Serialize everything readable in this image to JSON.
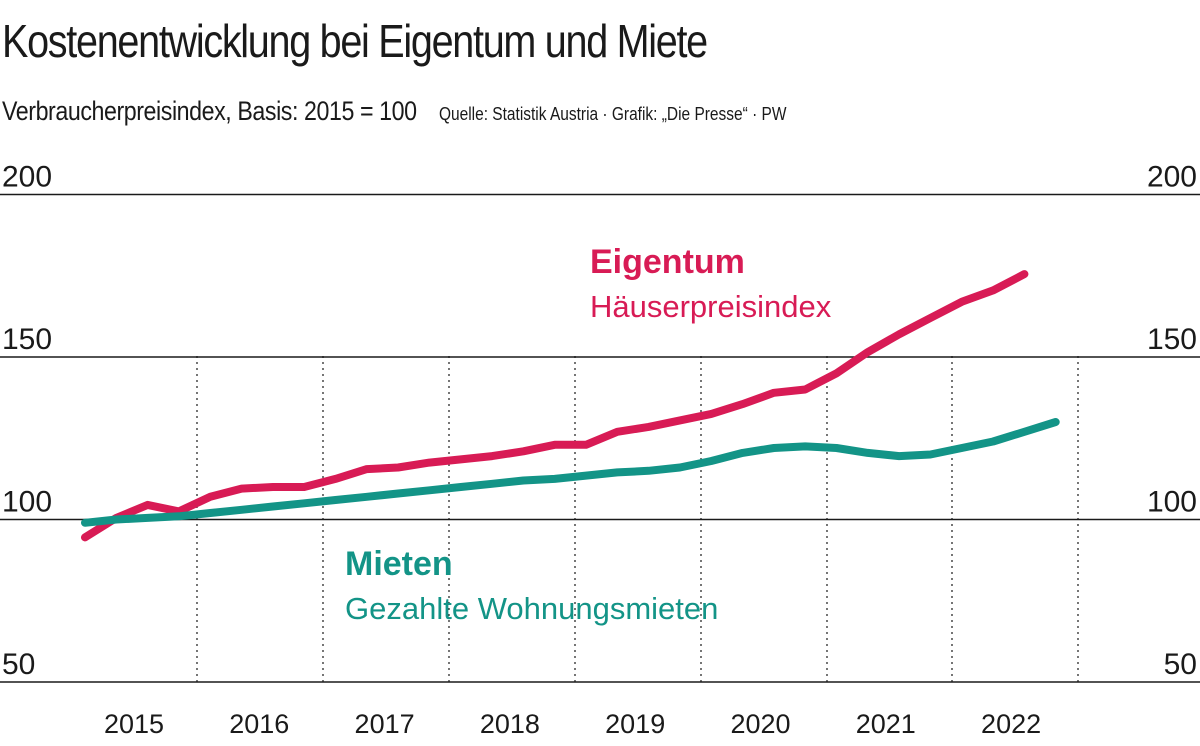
{
  "header": {
    "title": "Kostenentwicklung bei Eigentum und Miete",
    "subtitle": "Verbraucherpreisindex, Basis: 2015 = 100",
    "source": "Quelle: Statistik Austria · Grafik: „Die Presse“ · PW"
  },
  "chart_data": {
    "type": "line",
    "ylim": [
      50,
      200
    ],
    "yticks": [
      "50",
      "100",
      "150",
      "200"
    ],
    "years": [
      "2015",
      "2016",
      "2017",
      "2018",
      "2019",
      "2020",
      "2021",
      "2022"
    ],
    "grid": "horizontal solid lines at y ticks, dotted vertical separators between years",
    "series": [
      {
        "name": "Eigentum",
        "sublabel": "Häuserpreisindex",
        "color": "#d81b55",
        "x": [
          2015.0,
          2015.25,
          2015.5,
          2015.75,
          2016.0,
          2016.25,
          2016.5,
          2016.75,
          2017.0,
          2017.25,
          2017.5,
          2017.75,
          2018.0,
          2018.25,
          2018.5,
          2018.75,
          2019.0,
          2019.25,
          2019.5,
          2019.75,
          2020.0,
          2020.25,
          2020.5,
          2020.75,
          2021.0,
          2021.25,
          2021.5,
          2021.75,
          2022.0,
          2022.25,
          2022.5
        ],
        "values": [
          94.5,
          100.5,
          104.5,
          102.5,
          107,
          109.5,
          110,
          110,
          112.5,
          115.5,
          116,
          117.5,
          118.5,
          119.5,
          121,
          123,
          123,
          127,
          128.5,
          130.5,
          132.5,
          135.5,
          139,
          140,
          145,
          151.5,
          157,
          162,
          167,
          170.5,
          175.5
        ]
      },
      {
        "name": "Mieten",
        "sublabel": "Gezahlte Wohnungsmieten",
        "color": "#139487",
        "x": [
          2015.0,
          2015.25,
          2015.5,
          2015.75,
          2016.0,
          2016.25,
          2016.5,
          2016.75,
          2017.0,
          2017.25,
          2017.5,
          2017.75,
          2018.0,
          2018.25,
          2018.5,
          2018.75,
          2019.0,
          2019.25,
          2019.5,
          2019.75,
          2020.0,
          2020.25,
          2020.5,
          2020.75,
          2021.0,
          2021.25,
          2021.5,
          2021.75,
          2022.0,
          2022.25,
          2022.5,
          2022.75
        ],
        "values": [
          99,
          100,
          100.5,
          101,
          102,
          103,
          104,
          105,
          106,
          107,
          108,
          109,
          110,
          111,
          112,
          112.5,
          113.5,
          114.5,
          115,
          116,
          118,
          120.5,
          122,
          122.5,
          122,
          120.5,
          119.5,
          120,
          122,
          124,
          127,
          130
        ]
      }
    ]
  }
}
